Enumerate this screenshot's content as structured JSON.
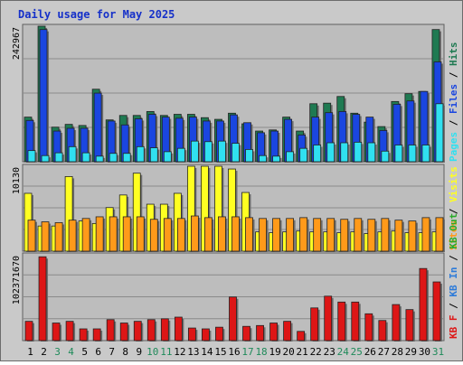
{
  "title": "Daily usage for May 2025",
  "colors": {
    "panel_bg": "#bdbdbd",
    "title": "#1530c9",
    "hits": "#1f7a52",
    "files": "#1a46e0",
    "pages": "#30e0f0",
    "visits": "#ffff22",
    "sites": "#ff9a1a",
    "kb_f": "#dd1616",
    "kb_in": "#2d7bd9",
    "kb_out": "#2aaa2a"
  },
  "chart_data": [
    {
      "type": "bar",
      "ylabel_max": "242967",
      "ymax": 242967,
      "legend": [
        "Pages",
        "Files",
        "Hits"
      ],
      "categories": [
        "1",
        "2",
        "3",
        "4",
        "5",
        "6",
        "7",
        "8",
        "9",
        "10",
        "11",
        "12",
        "13",
        "14",
        "15",
        "16",
        "17",
        "18",
        "19",
        "20",
        "21",
        "22",
        "23",
        "24",
        "25",
        "26",
        "27",
        "28",
        "29",
        "30",
        "31"
      ],
      "weekend_days": [
        "3",
        "4",
        "10",
        "11",
        "17",
        "18",
        "24",
        "25",
        "31"
      ],
      "series": [
        {
          "name": "Hits",
          "values": [
            80000,
            242967,
            62000,
            67000,
            65000,
            130000,
            75000,
            83000,
            83000,
            90000,
            83000,
            85000,
            85000,
            79000,
            76000,
            87000,
            68000,
            55000,
            57000,
            80000,
            55000,
            104000,
            105000,
            117000,
            87000,
            71000,
            63000,
            108000,
            122000,
            126000,
            237000
          ]
        },
        {
          "name": "Files",
          "values": [
            74000,
            237000,
            55000,
            60000,
            60000,
            123000,
            73000,
            66000,
            77000,
            85000,
            80000,
            78000,
            80000,
            73000,
            73000,
            84000,
            70000,
            52000,
            55000,
            76000,
            48000,
            80000,
            88000,
            90000,
            85000,
            80000,
            56000,
            103000,
            109000,
            126000,
            179000
          ]
        },
        {
          "name": "Pages",
          "values": [
            20000,
            11000,
            16000,
            27000,
            16000,
            10000,
            15000,
            15000,
            27000,
            25000,
            18000,
            24000,
            37000,
            36000,
            37000,
            33000,
            22000,
            11000,
            10000,
            18000,
            24000,
            30000,
            34000,
            34000,
            35000,
            34000,
            19000,
            30000,
            30000,
            30000,
            104000
          ]
        }
      ]
    },
    {
      "type": "bar",
      "ylabel_max": "10130",
      "ymax": 10130,
      "legend": [
        "Visits",
        "Sites"
      ],
      "categories": [
        "1",
        "2",
        "3",
        "4",
        "5",
        "6",
        "7",
        "8",
        "9",
        "10",
        "11",
        "12",
        "13",
        "14",
        "15",
        "16",
        "17",
        "18",
        "19",
        "20",
        "21",
        "22",
        "23",
        "24",
        "25",
        "26",
        "27",
        "28",
        "29",
        "30",
        "31"
      ],
      "series": [
        {
          "name": "Visits",
          "values": [
            6900,
            3000,
            3000,
            8900,
            3600,
            3300,
            5200,
            6700,
            9300,
            5600,
            5600,
            6900,
            10130,
            10130,
            10130,
            9800,
            7000,
            2300,
            2200,
            2300,
            2400,
            2300,
            2300,
            2200,
            2300,
            2100,
            2300,
            2400,
            2200,
            2200,
            2300
          ]
        },
        {
          "name": "Sites",
          "values": [
            3700,
            3500,
            3400,
            3700,
            3900,
            4100,
            4100,
            4100,
            4100,
            3800,
            3900,
            3900,
            4200,
            4000,
            4100,
            4100,
            4000,
            3900,
            3900,
            3900,
            4000,
            3900,
            3900,
            3800,
            3900,
            3800,
            3900,
            3700,
            3600,
            4000,
            4000
          ]
        }
      ]
    },
    {
      "type": "bar",
      "ylabel_max": "102371670",
      "ymax": 102371670,
      "legend": [
        "KB F",
        "KB In",
        "KB Out"
      ],
      "categories": [
        "1",
        "2",
        "3",
        "4",
        "5",
        "6",
        "7",
        "8",
        "9",
        "10",
        "11",
        "12",
        "13",
        "14",
        "15",
        "16",
        "17",
        "18",
        "19",
        "20",
        "21",
        "22",
        "23",
        "24",
        "25",
        "26",
        "27",
        "28",
        "29",
        "30",
        "31"
      ],
      "series": [
        {
          "name": "KB F",
          "values": [
            23000000,
            100000000,
            21000000,
            23000000,
            14000000,
            14000000,
            25000000,
            21000000,
            23000000,
            25000000,
            26000000,
            28000000,
            15000000,
            14000000,
            16000000,
            52000000,
            17000000,
            18000000,
            21000000,
            23000000,
            11000000,
            39000000,
            53000000,
            46000000,
            46000000,
            32000000,
            24000000,
            43000000,
            37000000,
            86000000,
            70000000
          ]
        }
      ]
    }
  ]
}
